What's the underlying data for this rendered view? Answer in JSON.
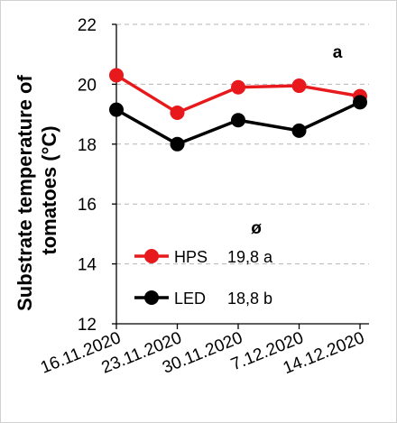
{
  "chart_data": {
    "type": "line",
    "title": "",
    "panel_label": "a",
    "xlabel": "",
    "ylabel": "Substrate temperature of tomatoes (°C)",
    "ylabel_lines": [
      "Substrate temperature of",
      "tomatoes (°C)"
    ],
    "categories": [
      "16.11.2020",
      "23.11.2020",
      "30.11.2020",
      "7.12.2020",
      "14.12.2020"
    ],
    "ylim": [
      12,
      22
    ],
    "yticks": [
      12,
      14,
      16,
      18,
      20,
      22
    ],
    "grid": "horizontal dashed",
    "legend_placement": "bottom-left inside",
    "average_symbol": "ø",
    "series": [
      {
        "name": "HPS",
        "color": "#e8191c",
        "values": [
          20.3,
          19.05,
          19.9,
          19.95,
          19.6
        ],
        "average": "19,8 a"
      },
      {
        "name": "LED",
        "color": "#000000",
        "values": [
          19.15,
          18.0,
          18.8,
          18.45,
          19.4
        ],
        "average": "18,8 b"
      }
    ]
  }
}
